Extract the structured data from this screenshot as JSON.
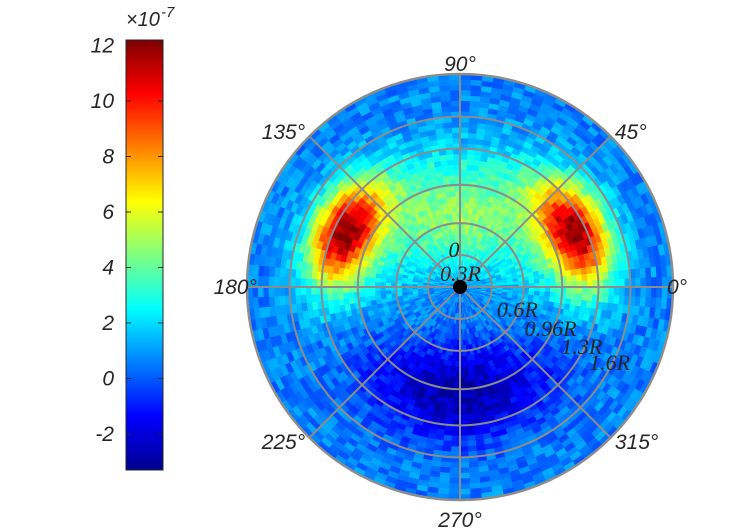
{
  "chart_data": {
    "type": "heatmap",
    "coordinate_system": "polar",
    "title": "",
    "colorbar": {
      "multiplier": "×10",
      "exponent": "-7",
      "ylim": [
        -3.3,
        12.2
      ],
      "tick_values": [
        12,
        10,
        8,
        6,
        4,
        2,
        0,
        -2
      ],
      "tick_labels": [
        "12",
        "10",
        "8",
        "6",
        "4",
        "2",
        "0",
        "-2"
      ],
      "colormap": "jet",
      "colors": [
        "#00008f",
        "#0000ff",
        "#0080ff",
        "#00ffff",
        "#80ff80",
        "#ffff00",
        "#ff8000",
        "#ff0000",
        "#800000"
      ],
      "location": "left"
    },
    "angular_axis": {
      "unit": "degrees",
      "tick_values": [
        0,
        45,
        90,
        135,
        180,
        225,
        270,
        315
      ],
      "tick_labels": [
        "0°",
        "45°",
        "90°",
        "135°",
        "180°",
        "225°",
        "270°",
        "315°"
      ]
    },
    "radial_axis": {
      "tick_labels": [
        "0",
        "0.3R",
        "0.6R",
        "0.96R",
        "1.3R",
        "1.6R"
      ],
      "ring_values": [
        0.3,
        0.6,
        0.96,
        1.3,
        1.6
      ],
      "outer_limit": 2.0,
      "label_angle_deg": 330
    },
    "grid": true,
    "marker": {
      "r": 0,
      "theta": 0,
      "color": "#000000",
      "label": ""
    },
    "value_field": {
      "unit_scale": 1e-07,
      "background": 0.6,
      "bands": [
        {
          "name": "positive lobe 1",
          "center_deg": 25,
          "angular_halfwidth_deg": 30,
          "r_center": 1.2,
          "r_halfwidth": 0.38,
          "peak": 11.2
        },
        {
          "name": "positive lobe 2",
          "center_deg": 155,
          "angular_halfwidth_deg": 30,
          "r_center": 1.2,
          "r_halfwidth": 0.38,
          "peak": 11.2
        },
        {
          "name": "inner positive region",
          "center_deg": 90,
          "angular_halfwidth_deg": 95,
          "r_center": 0.7,
          "r_halfwidth": 0.7,
          "peak": 4.8
        },
        {
          "name": "negative region",
          "center_deg": 270,
          "angular_halfwidth_deg": 60,
          "r_center": 1.0,
          "r_halfwidth": 0.55,
          "peak": -3.0
        }
      ],
      "approximate": true
    }
  }
}
